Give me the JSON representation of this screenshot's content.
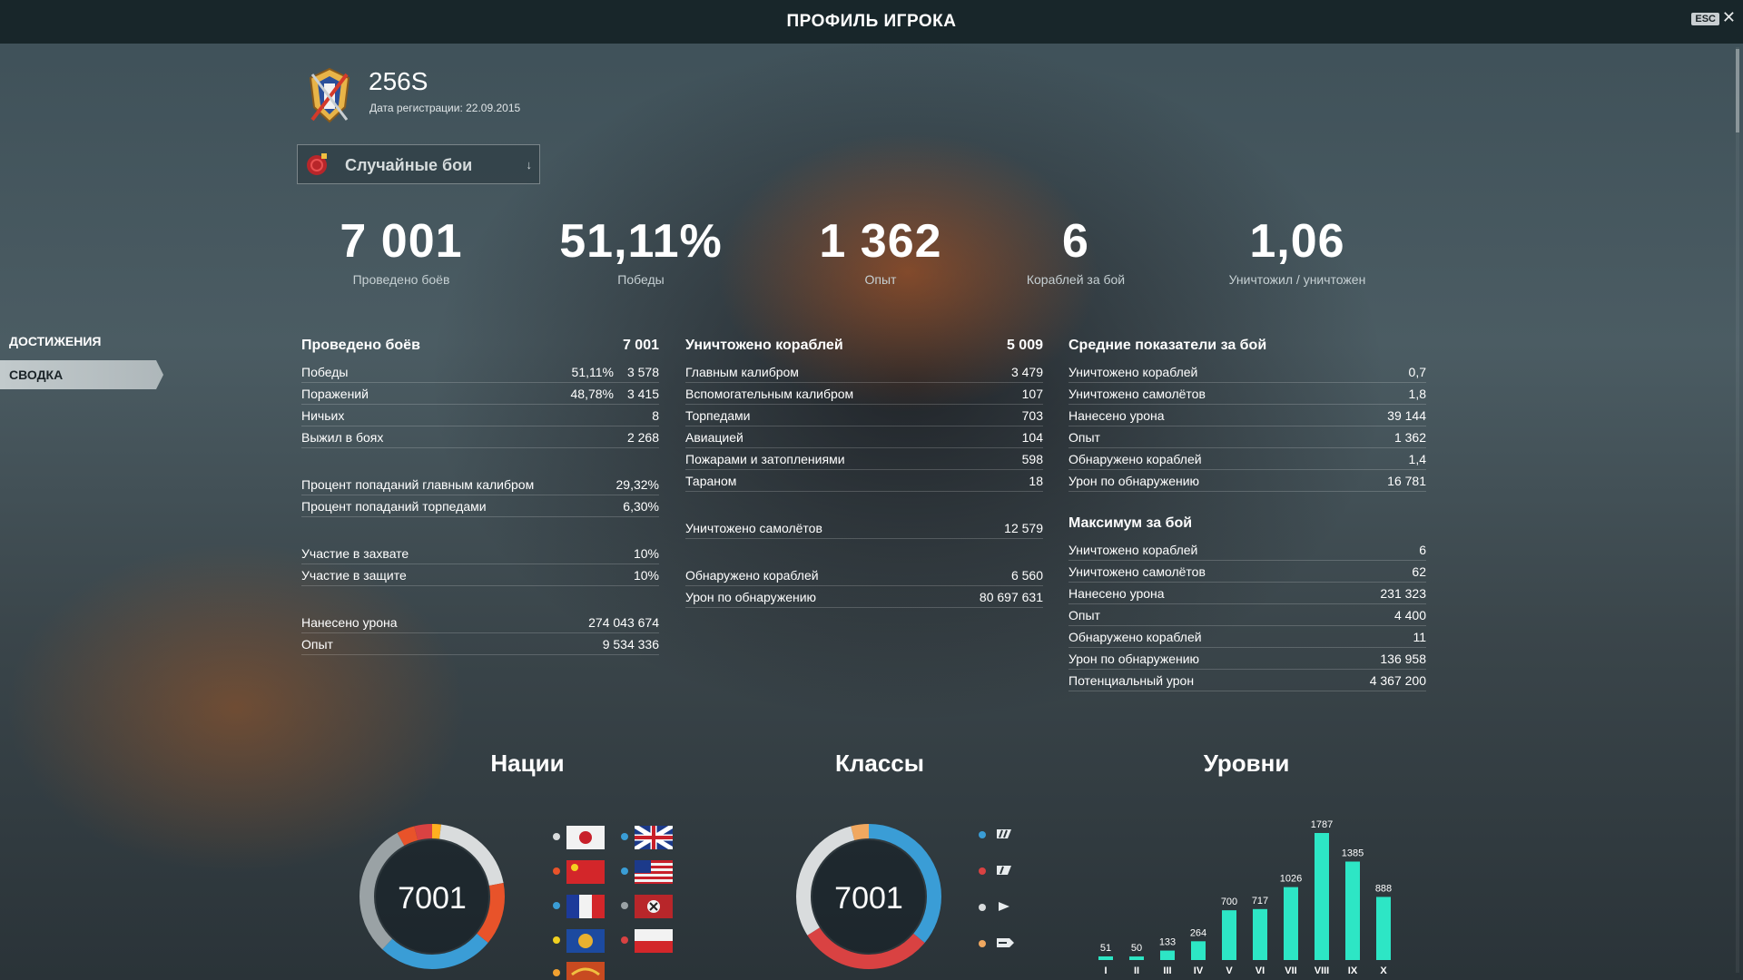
{
  "header": {
    "title": "ПРОФИЛЬ ИГРОКА",
    "esc_label": "ESC",
    "close_label": "✕"
  },
  "player": {
    "name": "256S",
    "registration": "Дата регистрации: 22.09.2015"
  },
  "mode_selector": {
    "label": "Случайные бои",
    "chevron": "↓"
  },
  "highlights": [
    {
      "value": "7 001",
      "label": "Проведено боёв"
    },
    {
      "value": "51,11%",
      "label": "Победы"
    },
    {
      "value": "1 362",
      "label": "Опыт"
    },
    {
      "value": "6",
      "label": "Кораблей за бой"
    },
    {
      "value": "1,06",
      "label": "Уничтожил / уничтожен"
    }
  ],
  "side_nav": [
    {
      "label": "ДОСТИЖЕНИЯ",
      "active": false
    },
    {
      "label": "СВОДКА",
      "active": true
    }
  ],
  "battles": {
    "title": "Проведено боёв",
    "total": "7 001",
    "rows": [
      {
        "label": "Победы",
        "pct": "51,11%",
        "value": "3 578"
      },
      {
        "label": "Поражений",
        "pct": "48,78%",
        "value": "3 415"
      },
      {
        "label": "Ничьих",
        "value": "8"
      },
      {
        "label": "Выжил в боях",
        "value": "2 268"
      }
    ],
    "accuracy": [
      {
        "label": "Процент попаданий главным калибром",
        "value": "29,32%"
      },
      {
        "label": "Процент попаданий торпедами",
        "value": "6,30%"
      }
    ],
    "capture": [
      {
        "label": "Участие в захвате",
        "value": "10%"
      },
      {
        "label": "Участие в защите",
        "value": "10%"
      }
    ],
    "totals": [
      {
        "label": "Нанесено урона",
        "value": "274 043 674"
      },
      {
        "label": "Опыт",
        "value": "9 534 336"
      }
    ]
  },
  "destroyed": {
    "title": "Уничтожено кораблей",
    "total": "5 009",
    "rows": [
      {
        "label": "Главным калибром",
        "value": "3 479"
      },
      {
        "label": "Вспомогательным калибром",
        "value": "107"
      },
      {
        "label": "Торпедами",
        "value": "703"
      },
      {
        "label": "Авиацией",
        "value": "104"
      },
      {
        "label": "Пожарами и затоплениями",
        "value": "598"
      },
      {
        "label": "Тараном",
        "value": "18"
      }
    ],
    "planes": {
      "label": "Уничтожено самолётов",
      "value": "12 579"
    },
    "spotting": [
      {
        "label": "Обнаружено кораблей",
        "value": "6 560"
      },
      {
        "label": "Урон по обнаружению",
        "value": "80 697 631"
      }
    ]
  },
  "average": {
    "title": "Средние показатели за бой",
    "rows": [
      {
        "label": "Уничтожено кораблей",
        "value": "0,7"
      },
      {
        "label": "Уничтожено самолётов",
        "value": "1,8"
      },
      {
        "label": "Нанесено урона",
        "value": "39 144"
      },
      {
        "label": "Опыт",
        "value": "1 362"
      },
      {
        "label": "Обнаружено кораблей",
        "value": "1,4"
      },
      {
        "label": "Урон по обнаружению",
        "value": "16 781"
      }
    ]
  },
  "maximum": {
    "title": "Максимум за бой",
    "rows": [
      {
        "label": "Уничтожено кораблей",
        "value": "6"
      },
      {
        "label": "Уничтожено самолётов",
        "value": "62"
      },
      {
        "label": "Нанесено урона",
        "value": "231 323"
      },
      {
        "label": "Опыт",
        "value": "4 400"
      },
      {
        "label": "Обнаружено кораблей",
        "value": "11"
      },
      {
        "label": "Урон по обнаружению",
        "value": "136 958"
      },
      {
        "label": "Потенциальный урон",
        "value": "4 367 200"
      }
    ]
  },
  "nations": {
    "title": "Нации",
    "total": "7001",
    "segments": [
      {
        "share": 0.02,
        "color": "#ffb020"
      },
      {
        "share": 0.2,
        "color": "#d9dcdd"
      },
      {
        "share": 0.14,
        "color": "#e8532a"
      },
      {
        "share": 0.26,
        "color": "#3a9dd6"
      },
      {
        "share": 0.3,
        "color": "#9aa2a5"
      },
      {
        "share": 0.04,
        "color": "#e8532a"
      },
      {
        "share": 0.04,
        "color": "#d94242"
      }
    ],
    "flags": [
      "japan-flag",
      "uk-flag",
      "china-flag",
      "usa-flag",
      "france-flag",
      "germany-flag",
      "commonwealth-flag",
      "poland-flag",
      "pan-asia-flag"
    ]
  },
  "classes": {
    "title": "Классы",
    "total": "7001",
    "segments": [
      {
        "share": 0.36,
        "color": "#3a9dd6"
      },
      {
        "share": 0.3,
        "color": "#d94242"
      },
      {
        "share": 0.3,
        "color": "#d9dcdd"
      },
      {
        "share": 0.04,
        "color": "#f0a860"
      }
    ],
    "legend": [
      {
        "icon": "battleship-icon",
        "color": "#3a9dd6"
      },
      {
        "icon": "cruiser-icon",
        "color": "#d94242"
      },
      {
        "icon": "destroyer-icon",
        "color": "#d9dcdd"
      },
      {
        "icon": "carrier-icon",
        "color": "#f0a860"
      }
    ]
  },
  "chart_data": {
    "type": "bar",
    "title": "Уровни",
    "categories": [
      "I",
      "II",
      "III",
      "IV",
      "V",
      "VI",
      "VII",
      "VIII",
      "IX",
      "X"
    ],
    "values": [
      51,
      50,
      133,
      264,
      700,
      717,
      1026,
      1787,
      1385,
      888
    ],
    "color": "#2de6c5"
  }
}
